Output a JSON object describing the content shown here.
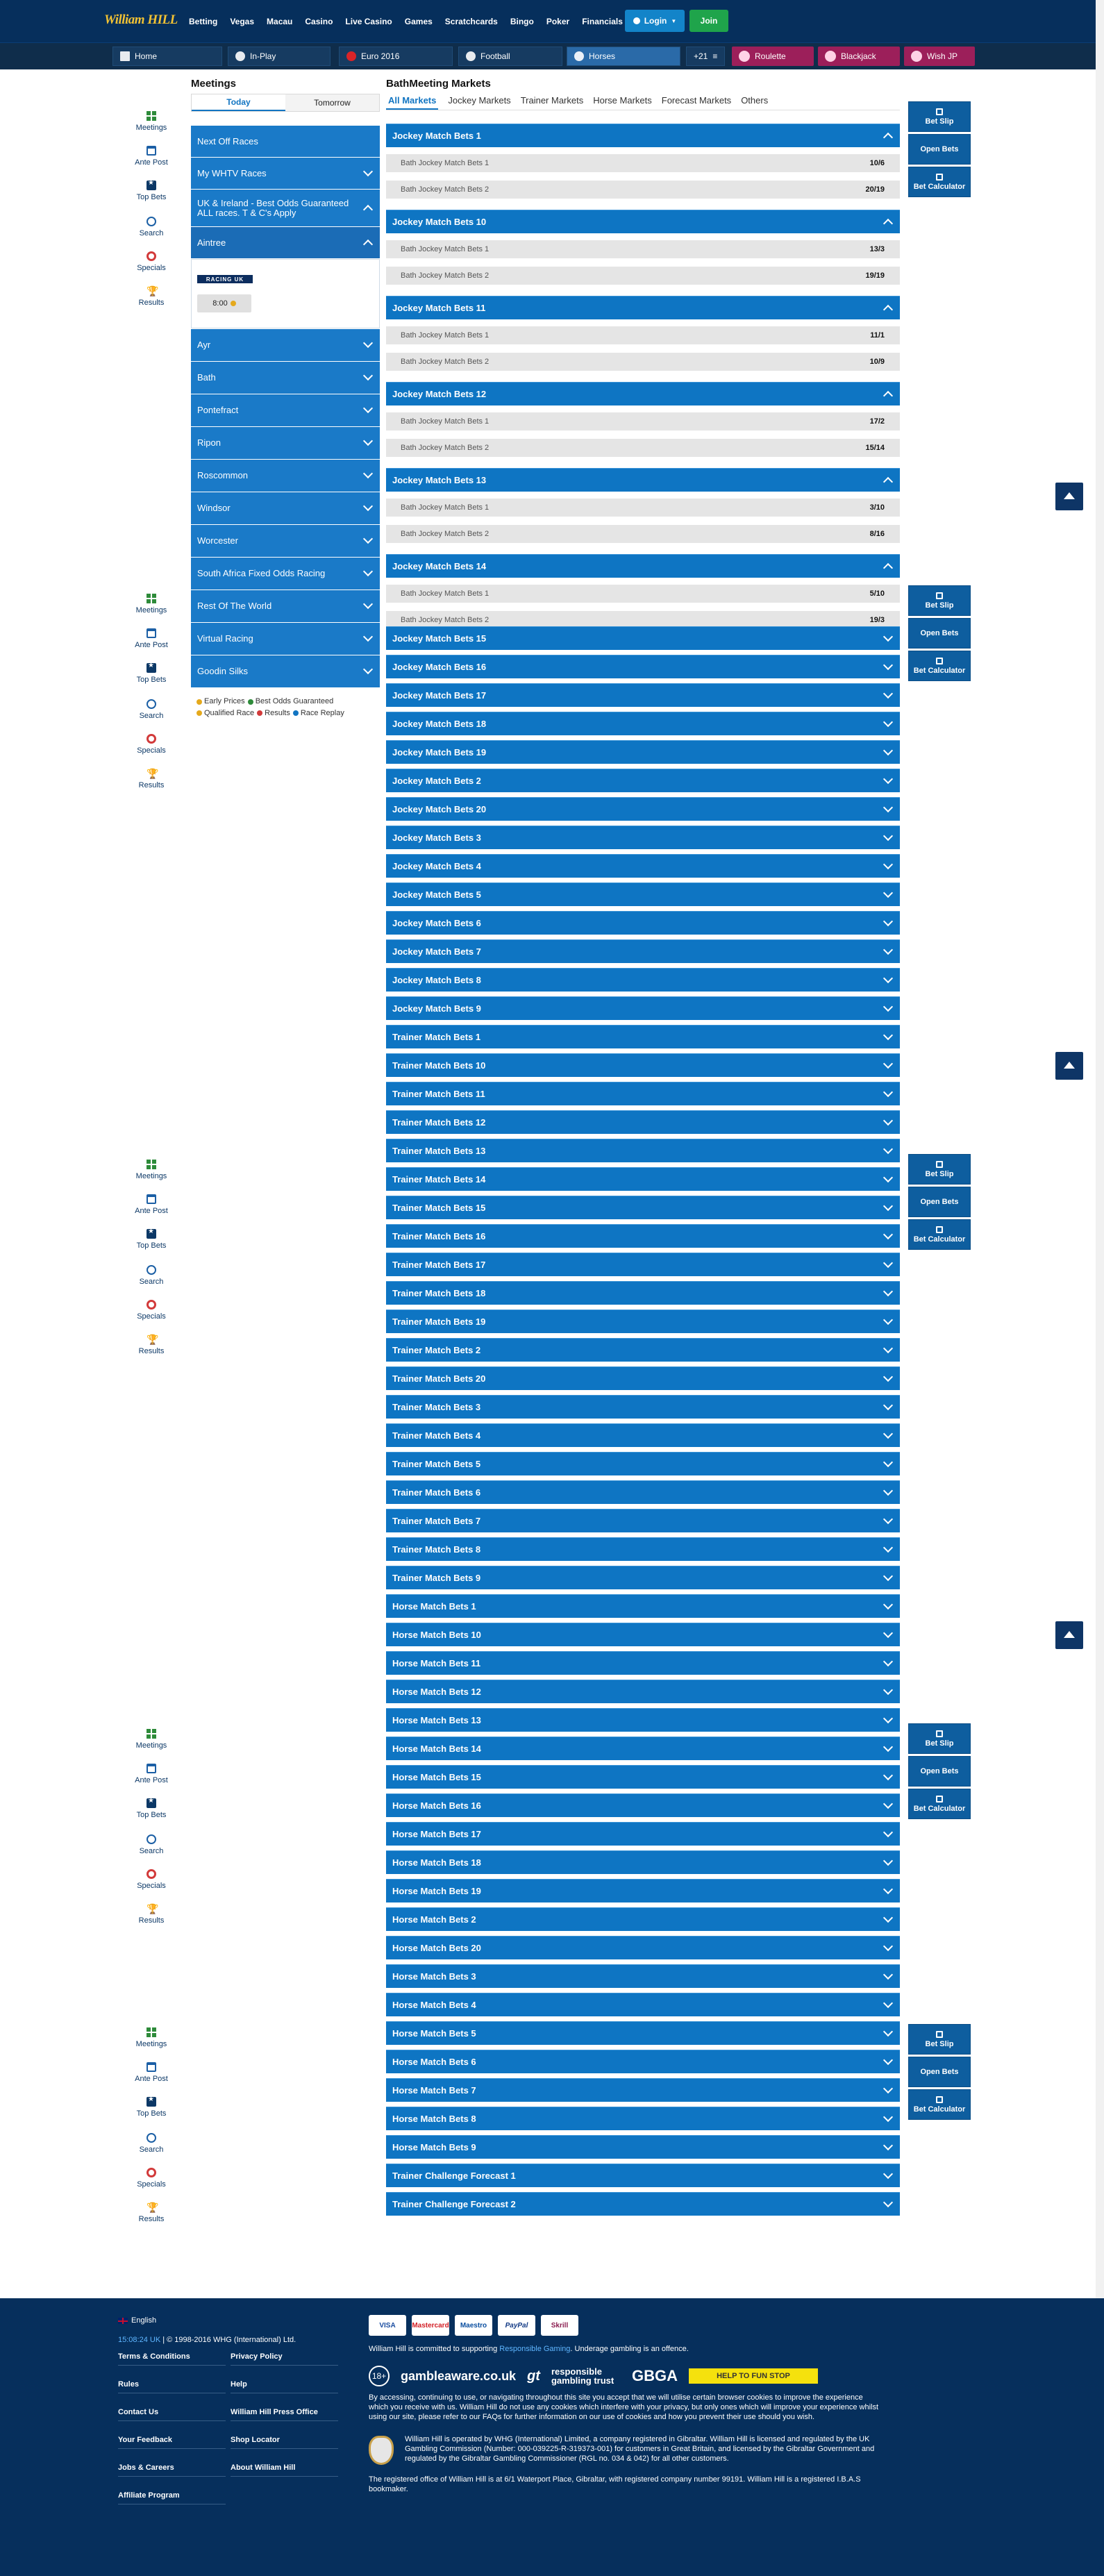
{
  "brand": {
    "logo": "William HILL"
  },
  "header": {
    "nav": [
      "Betting",
      "Vegas",
      "Macau",
      "Casino",
      "Live Casino",
      "Games",
      "Scratchcards",
      "Bingo",
      "Poker",
      "Financials"
    ],
    "login_label": "Login",
    "join_label": "Join"
  },
  "sportbar": {
    "tabs": [
      "Home",
      "In-Play",
      "Euro 2016",
      "Football",
      "Horses"
    ],
    "more_label": "+21",
    "casino": [
      "Roulette",
      "Blackjack",
      "Wish JP"
    ]
  },
  "leftnav": {
    "items": [
      "Meetings",
      "Ante Post",
      "Top Bets",
      "Search",
      "Specials",
      "Results"
    ]
  },
  "meetings": {
    "title": "Meetings",
    "tab_today": "Today",
    "tab_tomorrow": "Tomorrow",
    "rows": [
      "Next Off Races",
      "My WHTV Races",
      "UK & Ireland - Best Odds Guaranteed ALL races. T & C's Apply",
      "Aintree",
      "Ayr",
      "Bath",
      "Pontefract",
      "Ripon",
      "Roscommon",
      "Windsor",
      "Worcester",
      "South Africa Fixed Odds Racing",
      "Rest Of The World",
      "Virtual Racing",
      "Goodin Silks"
    ],
    "aintree_badge": "RACING UK",
    "aintree_time": "8:00"
  },
  "legend": {
    "items": [
      "Early Prices",
      "Best Odds Guaranteed",
      "Qualified Race",
      "Results",
      "Race Replay"
    ]
  },
  "markets": {
    "title": "BathMeeting Markets",
    "tabs": [
      "All Markets",
      "Jockey Markets",
      "Trainer Markets",
      "Horse Markets",
      "Forecast Markets",
      "Others"
    ],
    "expanded": [
      {
        "name": "Jockey Match Bets 1",
        "selections": [
          {
            "label": "Bath Jockey Match Bets 1",
            "odds": "10/6"
          },
          {
            "label": "Bath Jockey Match Bets 2",
            "odds": "20/19"
          }
        ]
      },
      {
        "name": "Jockey Match Bets 10",
        "selections": [
          {
            "label": "Bath Jockey Match Bets 1",
            "odds": "13/3"
          },
          {
            "label": "Bath Jockey Match Bets 2",
            "odds": "19/19"
          }
        ]
      },
      {
        "name": "Jockey Match Bets 11",
        "selections": [
          {
            "label": "Bath Jockey Match Bets 1",
            "odds": "11/1"
          },
          {
            "label": "Bath Jockey Match Bets 2",
            "odds": "10/9"
          }
        ]
      },
      {
        "name": "Jockey Match Bets 12",
        "selections": [
          {
            "label": "Bath Jockey Match Bets 1",
            "odds": "17/2"
          },
          {
            "label": "Bath Jockey Match Bets 2",
            "odds": "15/14"
          }
        ]
      },
      {
        "name": "Jockey Match Bets 13",
        "selections": [
          {
            "label": "Bath Jockey Match Bets 1",
            "odds": "3/10"
          },
          {
            "label": "Bath Jockey Match Bets 2",
            "odds": "8/16"
          }
        ]
      },
      {
        "name": "Jockey Match Bets 14",
        "selections": [
          {
            "label": "Bath Jockey Match Bets 1",
            "odds": "5/10"
          },
          {
            "label": "Bath Jockey Match Bets 2",
            "odds": "19/3"
          }
        ]
      }
    ],
    "collapsed": [
      "Jockey Match Bets 15",
      "Jockey Match Bets 16",
      "Jockey Match Bets 17",
      "Jockey Match Bets 18",
      "Jockey Match Bets 19",
      "Jockey Match Bets 2",
      "Jockey Match Bets 20",
      "Jockey Match Bets 3",
      "Jockey Match Bets 4",
      "Jockey Match Bets 5",
      "Jockey Match Bets 6",
      "Jockey Match Bets 7",
      "Jockey Match Bets 8",
      "Jockey Match Bets 9",
      "Trainer Match Bets 1",
      "Trainer Match Bets 10",
      "Trainer Match Bets 11",
      "Trainer Match Bets 12",
      "Trainer Match Bets 13",
      "Trainer Match Bets 14",
      "Trainer Match Bets 15",
      "Trainer Match Bets 16",
      "Trainer Match Bets 17",
      "Trainer Match Bets 18",
      "Trainer Match Bets 19",
      "Trainer Match Bets 2",
      "Trainer Match Bets 20",
      "Trainer Match Bets 3",
      "Trainer Match Bets 4",
      "Trainer Match Bets 5",
      "Trainer Match Bets 6",
      "Trainer Match Bets 7",
      "Trainer Match Bets 8",
      "Trainer Match Bets 9",
      "Horse Match Bets 1",
      "Horse Match Bets 10",
      "Horse Match Bets 11",
      "Horse Match Bets 12",
      "Horse Match Bets 13",
      "Horse Match Bets 14",
      "Horse Match Bets 15",
      "Horse Match Bets 16",
      "Horse Match Bets 17",
      "Horse Match Bets 18",
      "Horse Match Bets 19",
      "Horse Match Bets 2",
      "Horse Match Bets 20",
      "Horse Match Bets 3",
      "Horse Match Bets 4",
      "Horse Match Bets 5",
      "Horse Match Bets 6",
      "Horse Match Bets 7",
      "Horse Match Bets 8",
      "Horse Match Bets 9",
      "Trainer Challenge Forecast 1",
      "Trainer Challenge Forecast 2"
    ]
  },
  "betslip": {
    "buttons": [
      "Bet Slip",
      "Open Bets",
      "Bet Calculator"
    ]
  },
  "footer": {
    "language": "English",
    "time": "15:08:24 UK",
    "copyright": "© 1998-2016 WHG (International) Ltd.",
    "links_col1": [
      "Terms & Conditions",
      "Rules",
      "Contact Us",
      "Your Feedback",
      "Jobs & Careers",
      "Affiliate Program"
    ],
    "links_col2": [
      "Privacy Policy",
      "Help",
      "William Hill Press Office",
      "Shop Locator",
      "About William Hill"
    ],
    "payments": [
      "VISA",
      "Mastercard",
      "Maestro",
      "PayPal",
      "Skrill"
    ],
    "responsible_pre": "William Hill is committed to supporting",
    "responsible_link": "Responsible Gaming",
    "responsible_post": ". Underage gambling is an offence.",
    "logos": [
      "18+",
      "gambleaware.co.uk",
      "gt",
      "responsible gambling trust",
      "GBGA",
      "HELP TO FUN STOP"
    ],
    "cookie_text": "By accessing, continuing to use, or navigating throughout this site you accept that we will utilise certain browser cookies to improve the experience which you receive with us. William Hill do not use any cookies which interfere with your privacy, but only ones which will improve your experience whilst using our site, please refer to our FAQs for further information on our use of cookies and how you prevent their use should you wish.",
    "license_text": "William Hill is operated by WHG (International) Limited, a company registered in Gibraltar. William Hill is licensed and regulated by the UK Gambling Commission (Number: 000-039225-R-319373-001) for customers in Great Britain, and licensed by the Gibraltar Government and regulated by the Gibraltar Gambling Commissioner (RGL no. 034 & 042) for all other customers.",
    "office_text": "The registered office of William Hill is at 6/1 Waterport Place, Gibraltar, with registered company number 99191. William Hill is a registered I.B.A.S bookmaker."
  },
  "colors": {
    "header_bg": "#062f5c",
    "accent_blue": "#0e75c3",
    "join_green": "#1fa44b",
    "casino_pink": "#9c1f5a"
  }
}
